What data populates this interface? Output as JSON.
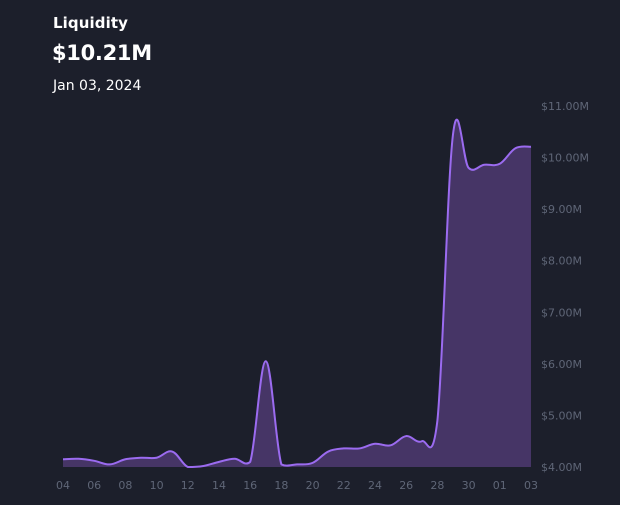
{
  "header": {
    "title": "Liquidity",
    "value": "$10.21M",
    "date": "Jan 03, 2024"
  },
  "colors": {
    "background": "#1c1f2b",
    "line": "#9b6bf0",
    "area": "#463566",
    "tick_text": "#5f6677"
  },
  "chart_data": {
    "type": "area",
    "title": "Liquidity",
    "xlabel": "",
    "ylabel": "",
    "x_ticks": [
      "04",
      "06",
      "08",
      "10",
      "12",
      "14",
      "16",
      "18",
      "20",
      "22",
      "24",
      "26",
      "28",
      "30",
      "01",
      "03"
    ],
    "y_ticks": [
      "$4.00M",
      "$5.00M",
      "$6.00M",
      "$7.00M",
      "$8.00M",
      "$9.00M",
      "$10.00M",
      "$11.00M"
    ],
    "ylim": [
      4.0,
      11.0
    ],
    "y_unit": "$M",
    "grid": false,
    "legend": "none",
    "series": [
      {
        "x": [
          "Dec 04",
          "Dec 05",
          "Dec 06",
          "Dec 07",
          "Dec 08",
          "Dec 09",
          "Dec 10",
          "Dec 11",
          "Dec 12",
          "Dec 13",
          "Dec 14",
          "Dec 15",
          "Dec 16",
          "Dec 17",
          "Dec 18",
          "Dec 19",
          "Dec 20",
          "Dec 21",
          "Dec 22",
          "Dec 23",
          "Dec 24",
          "Dec 25",
          "Dec 26",
          "Dec 27",
          "Dec 28",
          "Dec 29",
          "Dec 30",
          "Dec 31",
          "Jan 01",
          "Jan 02",
          "Jan 03"
        ],
        "values": [
          4.15,
          4.16,
          4.12,
          4.05,
          4.15,
          4.18,
          4.18,
          4.3,
          4.0,
          4.02,
          4.1,
          4.16,
          4.1,
          6.05,
          4.05,
          4.05,
          4.08,
          4.3,
          4.36,
          4.36,
          4.45,
          4.42,
          4.6,
          4.5,
          4.9,
          10.45,
          9.8,
          9.86,
          9.88,
          10.18,
          10.21
        ]
      }
    ]
  }
}
